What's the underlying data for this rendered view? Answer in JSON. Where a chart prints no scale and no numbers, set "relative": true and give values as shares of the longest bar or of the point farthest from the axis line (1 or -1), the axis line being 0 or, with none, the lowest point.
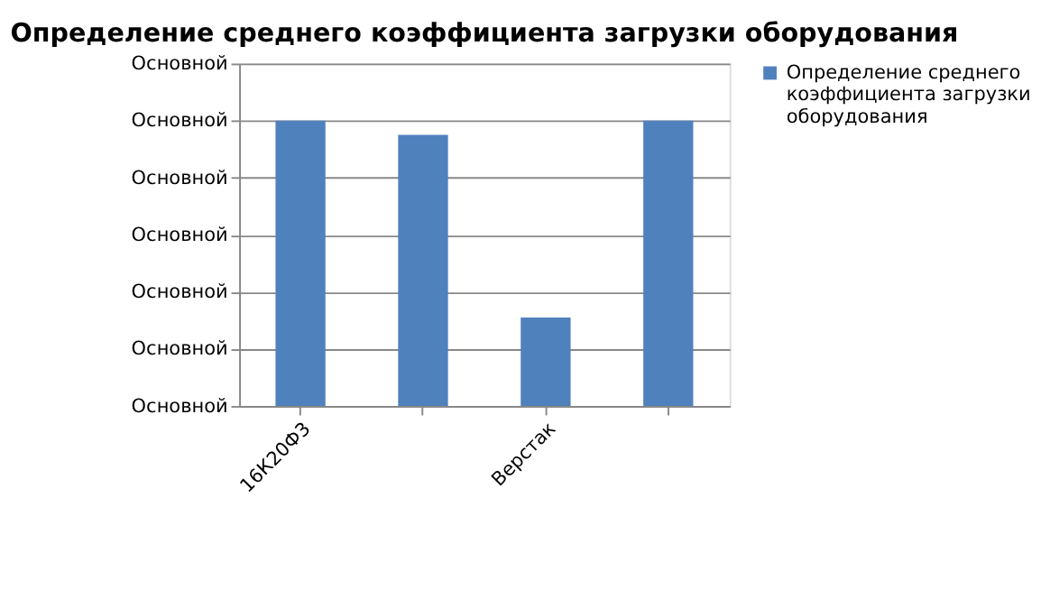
{
  "chart_data": {
    "type": "bar",
    "title": "Определение среднего коэффициента загрузки оборудования",
    "categories": [
      "16К20Ф3",
      null,
      "Верстак",
      null
    ],
    "series": [
      {
        "name": "Определение среднего коэффициента загрузки оборудования",
        "color": "#4f81bd",
        "values": [
          1,
          0.95,
          0.31,
          1
        ]
      }
    ],
    "relative": true,
    "annotations": [
      "Основной",
      "Основной",
      "Основной",
      "Основной",
      "Основной",
      "Основной",
      "Основной"
    ],
    "grid": "y",
    "legend": "right"
  }
}
